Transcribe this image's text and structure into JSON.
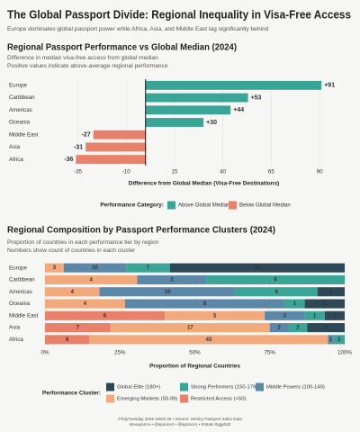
{
  "title": "The Global Passport Divide: Regional Inequality in Visa-Free Access",
  "subtitle": "Europe dominates global passport power while Africa, Asia, and Middle East lag significantly behind",
  "caption": [
    "#TidyTuesday 2025 Week 36 • Source: Henley Passport Index Data",
    "steveponce • @sponce1 • @sponce1 • #rstats #ggplot2"
  ],
  "chart_data": [
    {
      "type": "bar",
      "orientation": "horizontal",
      "title": "Regional Passport Performance vs Global Median (2024)",
      "subtitle": [
        "Difference in median visa-free access from global median",
        "Positive values indicate above-average regional performance"
      ],
      "categories": [
        "Europe",
        "Caribbean",
        "Americas",
        "Oceania",
        "Middle East",
        "Asia",
        "Africa"
      ],
      "values": [
        91,
        53,
        44,
        30,
        -27,
        -31,
        -36
      ],
      "value_labels": [
        "+91",
        "+53",
        "+44",
        "+30",
        "-27",
        "-31",
        "-36"
      ],
      "xlim": [
        -52,
        103
      ],
      "xticks": [
        -35,
        -10,
        15,
        40,
        65,
        90
      ],
      "grid": true,
      "xlabel": "Difference from Global Median (Visa-Free Destinations)",
      "legend_title": "Performance Category:",
      "legend": [
        {
          "name": "Above Global Median",
          "color": "#3aa597"
        },
        {
          "name": "Below Global Median",
          "color": "#e8806a"
        }
      ]
    },
    {
      "type": "stacked_percent_bar",
      "orientation": "horizontal",
      "title": "Regional Composition by Passport Performance Clusters (2024)",
      "subtitle": [
        "Proportion of countries in each performance tier by region",
        "Numbers show count of countries in each cluster"
      ],
      "categories": [
        "Europe",
        "Caribbean",
        "Americas",
        "Oceania",
        "Middle East",
        "Asia",
        "Africa"
      ],
      "series": [
        {
          "name": "Restricted Access (<50)",
          "color": "#e8806a",
          "values": [
            0,
            0,
            0,
            0,
            6,
            7,
            8
          ]
        },
        {
          "name": "Emerging Markets (50-99)",
          "color": "#f2a97c",
          "values": [
            3,
            4,
            4,
            4,
            5,
            17,
            43
          ]
        },
        {
          "name": "Middle Powers (100-149)",
          "color": "#5b87a8",
          "values": [
            10,
            3,
            10,
            8,
            2,
            2,
            1
          ]
        },
        {
          "name": "Strong Performers (150-179)",
          "color": "#3aa597",
          "values": [
            7,
            6,
            6,
            1,
            1,
            2,
            2
          ]
        },
        {
          "name": "Global Elite (180+)",
          "color": "#2f4858",
          "values": [
            28,
            0,
            2,
            2,
            1,
            4,
            0
          ]
        }
      ],
      "xlim": [
        0,
        100
      ],
      "xticks": [
        {
          "value": 0,
          "label": "0%"
        },
        {
          "value": 25,
          "label": "25%"
        },
        {
          "value": 50,
          "label": "50%"
        },
        {
          "value": 75,
          "label": "75%"
        },
        {
          "value": 100,
          "label": "100%"
        }
      ],
      "xlabel": "Proportion of Regional Countries",
      "legend_title": "Performance Cluster:"
    }
  ]
}
